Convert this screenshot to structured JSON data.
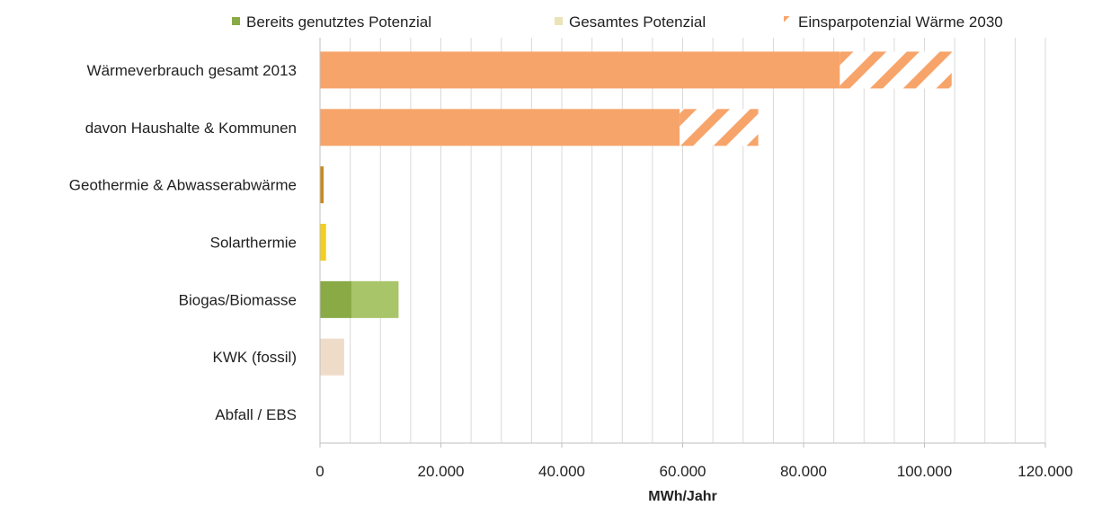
{
  "chart_data": {
    "type": "bar",
    "orientation": "horizontal",
    "stacked": true,
    "categories": [
      "Wärmeverbrauch gesamt 2013",
      "davon Haushalte & Kommunen",
      "Geothermie & Abwasserabwärme",
      "Solarthermie",
      "Biogas/Biomasse",
      "KWK (fossil)",
      "Abfall / EBS"
    ],
    "legend": [
      {
        "name": "Bereits genutztes Potenzial",
        "color": "#8aaa46",
        "pattern": "solid"
      },
      {
        "name": "Gesamtes Potenzial",
        "color": "#ece3b8",
        "pattern": "solid"
      },
      {
        "name": "Einsparpotenzial Wärme 2030",
        "color": "#f7a46a",
        "pattern": "hatched"
      }
    ],
    "legend_position": "top",
    "bars": [
      {
        "category": "Wärmeverbrauch gesamt 2013",
        "segments": [
          {
            "value": 86000,
            "color": "#f7a46a",
            "pattern": "solid"
          },
          {
            "value": 18500,
            "color": "#f7a46a",
            "pattern": "hatched"
          }
        ]
      },
      {
        "category": "davon Haushalte & Kommunen",
        "segments": [
          {
            "value": 59500,
            "color": "#f7a46a",
            "pattern": "solid"
          },
          {
            "value": 13000,
            "color": "#f7a46a",
            "pattern": "hatched"
          }
        ]
      },
      {
        "category": "Geothermie & Abwasserabwärme",
        "segments": [
          {
            "value": 600,
            "color": "#c98a1e",
            "pattern": "solid"
          }
        ]
      },
      {
        "category": "Solarthermie",
        "segments": [
          {
            "value": 1000,
            "color": "#f2cf1e",
            "pattern": "solid"
          }
        ]
      },
      {
        "category": "Biogas/Biomasse",
        "segments": [
          {
            "value": 5200,
            "color": "#8aaa46",
            "pattern": "solid"
          },
          {
            "value": 7800,
            "color": "#a9c56a",
            "pattern": "solid"
          }
        ]
      },
      {
        "category": "KWK (fossil)",
        "segments": [
          {
            "value": 4000,
            "color": "#efdcc8",
            "pattern": "solid"
          }
        ]
      },
      {
        "category": "Abfall / EBS",
        "segments": []
      }
    ],
    "xlabel": "MWh/Jahr",
    "xlim": [
      0,
      120000
    ],
    "xticks": [
      0,
      20000,
      40000,
      60000,
      80000,
      100000,
      120000
    ],
    "xtick_labels": [
      "0",
      "20.000",
      "40.000",
      "60.000",
      "80.000",
      "100.000",
      "120.000"
    ],
    "minor_grid_step": 5000,
    "grid": true
  }
}
